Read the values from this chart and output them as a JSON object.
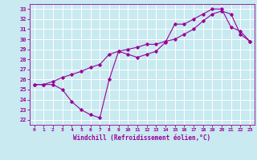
{
  "title": "",
  "xlabel": "Windchill (Refroidissement éolien,°C)",
  "ylabel": "",
  "xlim": [
    -0.5,
    23.5
  ],
  "ylim": [
    21.5,
    33.5
  ],
  "xticks": [
    0,
    1,
    2,
    3,
    4,
    5,
    6,
    7,
    8,
    9,
    10,
    11,
    12,
    13,
    14,
    15,
    16,
    17,
    18,
    19,
    20,
    21,
    22,
    23
  ],
  "yticks": [
    22,
    23,
    24,
    25,
    26,
    27,
    28,
    29,
    30,
    31,
    32,
    33
  ],
  "bg_color": "#c8eaf0",
  "line_color": "#990099",
  "grid_color": "#ffffff",
  "line1_x": [
    0,
    1,
    2,
    3,
    4,
    5,
    6,
    7,
    8,
    9,
    10,
    11,
    12,
    13,
    14,
    15,
    16,
    17,
    18,
    19,
    20,
    21,
    22,
    23
  ],
  "line1_y": [
    25.5,
    25.5,
    25.5,
    25.0,
    23.8,
    23.0,
    22.5,
    22.2,
    26.0,
    28.8,
    28.5,
    28.2,
    28.5,
    28.8,
    29.7,
    31.5,
    31.5,
    32.0,
    32.5,
    33.0,
    33.0,
    31.2,
    30.8,
    29.8
  ],
  "line2_x": [
    0,
    1,
    2,
    3,
    4,
    5,
    6,
    7,
    8,
    9,
    10,
    11,
    12,
    13,
    14,
    15,
    16,
    17,
    18,
    19,
    20,
    21,
    22,
    23
  ],
  "line2_y": [
    25.5,
    25.5,
    25.8,
    26.2,
    26.5,
    26.8,
    27.2,
    27.5,
    28.5,
    28.8,
    29.0,
    29.2,
    29.5,
    29.5,
    29.8,
    30.0,
    30.5,
    31.0,
    31.8,
    32.5,
    32.8,
    32.5,
    30.5,
    29.8
  ]
}
